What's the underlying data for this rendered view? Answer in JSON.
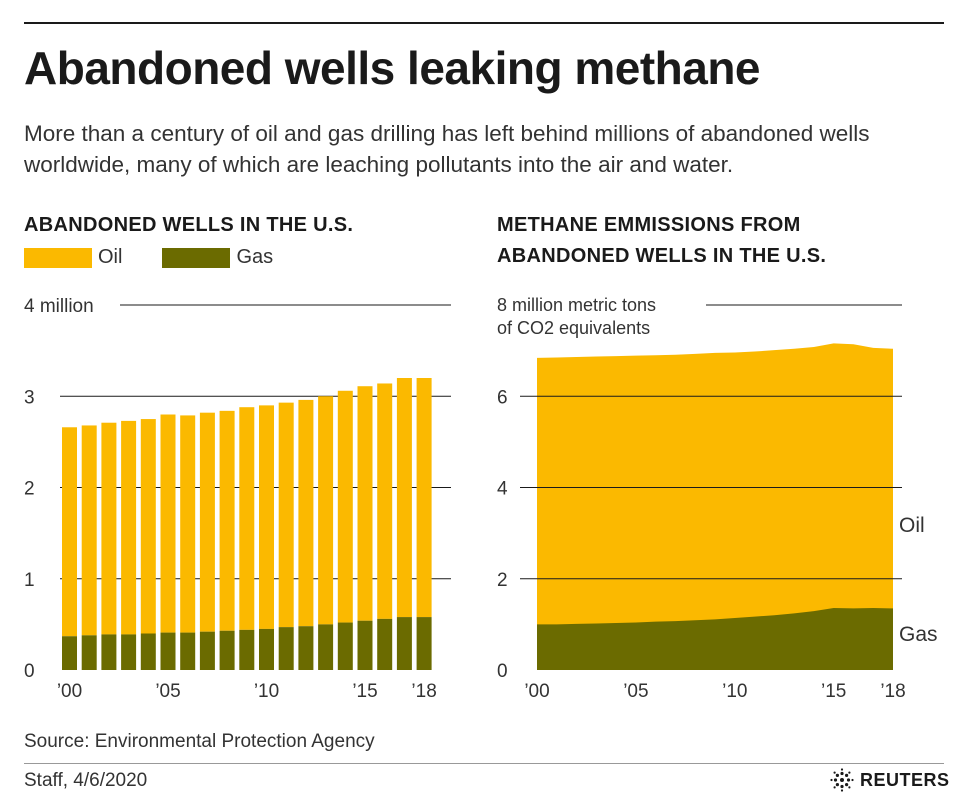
{
  "title": "Abandoned wells leaking methane",
  "subtitle": "More than a century of oil and gas drilling has left behind millions of abandoned wells worldwide, many of which are leaching pollutants into the air and water.",
  "colors": {
    "oil": "#fbb900",
    "gas": "#6b6b00",
    "grid": "#1a1a1a",
    "text": "#333333"
  },
  "legend": {
    "oil": "Oil",
    "gas": "Gas"
  },
  "source": "Source: Environmental Protection Agency",
  "credit": "Staff,  4/6/2020",
  "logo": {
    "icon": "reuters-logo-icon",
    "text": "REUTERS"
  },
  "chart_data": [
    {
      "type": "bar",
      "stacked": true,
      "title": "ABANDONED WELLS IN THE U.S.",
      "unit_label": "4 million",
      "x": [
        2000,
        2001,
        2002,
        2003,
        2004,
        2005,
        2006,
        2007,
        2008,
        2009,
        2010,
        2011,
        2012,
        2013,
        2014,
        2015,
        2016,
        2017,
        2018
      ],
      "series": [
        {
          "name": "Gas",
          "values": [
            0.37,
            0.38,
            0.39,
            0.39,
            0.4,
            0.41,
            0.41,
            0.42,
            0.43,
            0.44,
            0.45,
            0.47,
            0.48,
            0.5,
            0.52,
            0.54,
            0.56,
            0.58,
            0.58
          ]
        },
        {
          "name": "Oil",
          "values": [
            2.29,
            2.3,
            2.32,
            2.34,
            2.35,
            2.39,
            2.38,
            2.4,
            2.41,
            2.44,
            2.45,
            2.46,
            2.48,
            2.5,
            2.54,
            2.57,
            2.58,
            2.62,
            2.62
          ]
        }
      ],
      "ylim": [
        0,
        4
      ],
      "y_ticks": [
        {
          "value": 0,
          "label": "0"
        },
        {
          "value": 1,
          "label": "1"
        },
        {
          "value": 2,
          "label": "2"
        },
        {
          "value": 3,
          "label": "3"
        },
        {
          "value": 4,
          "label": "4 million"
        }
      ],
      "x_ticks": [
        {
          "value": 2000,
          "label": "’00"
        },
        {
          "value": 2005,
          "label": "’05"
        },
        {
          "value": 2010,
          "label": "’10"
        },
        {
          "value": 2015,
          "label": "’15"
        },
        {
          "value": 2018,
          "label": "’18"
        }
      ],
      "legend_position": "top-left"
    },
    {
      "type": "area",
      "stacked": true,
      "title_line1": "METHANE EMMISSIONS FROM",
      "title_line2": "ABANDONED WELLS IN THE U.S.",
      "unit_label_line1": "8 million metric tons",
      "unit_label_line2": "of CO2 equivalents",
      "x": [
        2000,
        2001,
        2002,
        2003,
        2004,
        2005,
        2006,
        2007,
        2008,
        2009,
        2010,
        2011,
        2012,
        2013,
        2014,
        2015,
        2016,
        2017,
        2018
      ],
      "series": [
        {
          "name": "Gas",
          "values": [
            1.0,
            1.0,
            1.01,
            1.02,
            1.03,
            1.04,
            1.06,
            1.07,
            1.09,
            1.11,
            1.14,
            1.17,
            1.2,
            1.24,
            1.29,
            1.36,
            1.35,
            1.36,
            1.35
          ]
        },
        {
          "name": "Oil",
          "values": [
            5.84,
            5.85,
            5.85,
            5.85,
            5.85,
            5.85,
            5.84,
            5.84,
            5.84,
            5.84,
            5.82,
            5.81,
            5.81,
            5.8,
            5.79,
            5.8,
            5.79,
            5.7,
            5.69
          ]
        }
      ],
      "ylim": [
        0,
        8
      ],
      "y_ticks": [
        {
          "value": 0,
          "label": "0"
        },
        {
          "value": 2,
          "label": "2"
        },
        {
          "value": 4,
          "label": "4"
        },
        {
          "value": 6,
          "label": "6"
        },
        {
          "value": 8,
          "label": ""
        }
      ],
      "x_ticks": [
        {
          "value": 2000,
          "label": "’00"
        },
        {
          "value": 2005,
          "label": "’05"
        },
        {
          "value": 2010,
          "label": "’10"
        },
        {
          "value": 2015,
          "label": "’15"
        },
        {
          "value": 2018,
          "label": "’18"
        }
      ],
      "series_labels": {
        "oil": "Oil",
        "gas": "Gas"
      }
    }
  ]
}
